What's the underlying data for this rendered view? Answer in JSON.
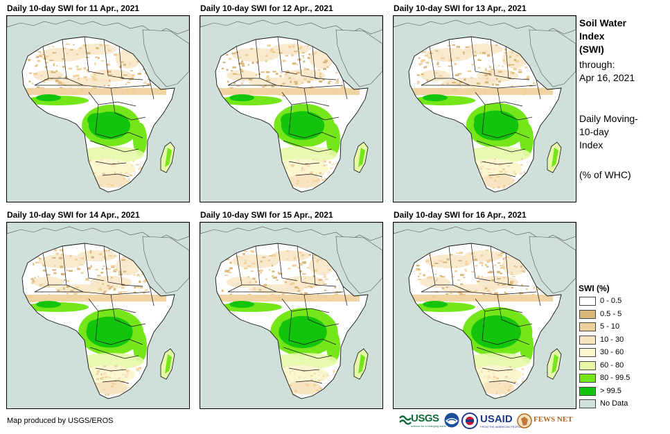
{
  "panels": [
    {
      "title": "Daily 10-day  SWI for 11 Apr., 2021"
    },
    {
      "title": "Daily 10-day  SWI for 12 Apr., 2021"
    },
    {
      "title": "Daily 10-day  SWI for 13 Apr., 2021"
    },
    {
      "title": "Daily 10-day  SWI for 14 Apr., 2021"
    },
    {
      "title": "Daily 10-day  SWI for 15 Apr., 2021"
    },
    {
      "title": "Daily 10-day  SWI for 16 Apr., 2021"
    }
  ],
  "side_info": {
    "title_line1": "Soil Water",
    "title_line2": "Index",
    "title_line3": "(SWI)",
    "through_label": "through:",
    "through_date": "Apr 16, 2021",
    "desc_line1": "Daily Moving-",
    "desc_line2": "10-day",
    "desc_line3": "Index",
    "units": "(% of WHC)"
  },
  "legend": {
    "title": "SWI (%)",
    "items": [
      {
        "label": "0 - 0.5",
        "color": "#ffffff"
      },
      {
        "label": "0.5 - 5",
        "color": "#d9b77a"
      },
      {
        "label": "5 - 10",
        "color": "#efcf9a"
      },
      {
        "label": "10 - 30",
        "color": "#f8e4c0"
      },
      {
        "label": "30 - 60",
        "color": "#fbf7cf"
      },
      {
        "label": "60 - 80",
        "color": "#e6f9a8"
      },
      {
        "label": "80 - 99.5",
        "color": "#74e619"
      },
      {
        "label": "> 99.5",
        "color": "#13c40c"
      },
      {
        "label": "No Data",
        "color": "#cfdfd9"
      }
    ]
  },
  "credit": "Map produced by USGS/EROS",
  "logos": {
    "usgs": "USGS",
    "usgs_tagline": "science for a changing world",
    "noaa": "NOAA",
    "usaid": "USAID",
    "usaid_tagline": "FROM THE AMERICAN PEOPLE",
    "fewsnet": "FEWS NET"
  }
}
